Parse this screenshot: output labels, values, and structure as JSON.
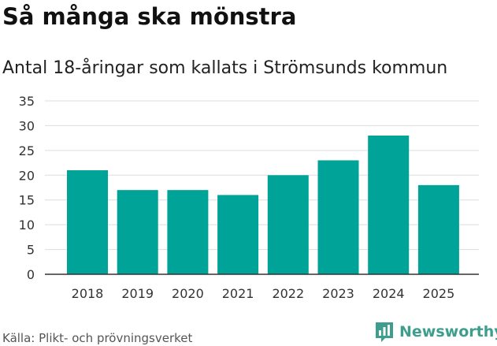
{
  "header": {
    "title": "Så många ska mönstra",
    "subtitle": "Antal 18-åringar som kallats i Strömsunds kommun"
  },
  "footer": {
    "source": "Källa: Plikt- och prövningsverket",
    "brand_name": "Newsworthy",
    "brand_icon": "newsworthy-bar-chart-icon"
  },
  "colors": {
    "bar": "#00a398",
    "grid": "#dddddd",
    "axis": "#333333",
    "tick_text": "#333333",
    "brand": "#3e9e8e"
  },
  "chart_data": {
    "type": "bar",
    "title": "Så många ska mönstra",
    "subtitle": "Antal 18-åringar som kallats i Strömsunds kommun",
    "xlabel": "",
    "ylabel": "",
    "categories": [
      "2018",
      "2019",
      "2020",
      "2021",
      "2022",
      "2023",
      "2024",
      "2025"
    ],
    "values": [
      21,
      17,
      17,
      16,
      20,
      23,
      28,
      18
    ],
    "ylim": [
      0,
      35
    ],
    "yticks": [
      0,
      5,
      10,
      15,
      20,
      25,
      30,
      35
    ],
    "grid": true,
    "legend": "none"
  }
}
